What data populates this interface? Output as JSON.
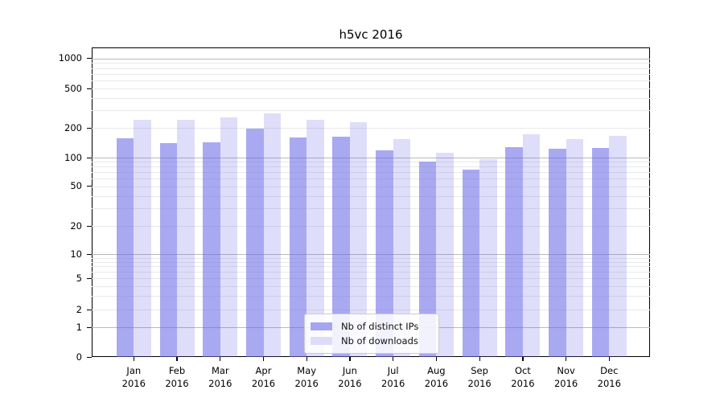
{
  "title": "h5vc 2016",
  "chart_data": {
    "type": "bar",
    "title": "h5vc 2016",
    "x_labels": [
      [
        "Jan",
        "2016"
      ],
      [
        "Feb",
        "2016"
      ],
      [
        "Mar",
        "2016"
      ],
      [
        "Apr",
        "2016"
      ],
      [
        "May",
        "2016"
      ],
      [
        "Jun",
        "2016"
      ],
      [
        "Jul",
        "2016"
      ],
      [
        "Aug",
        "2016"
      ],
      [
        "Sep",
        "2016"
      ],
      [
        "Oct",
        "2016"
      ],
      [
        "Nov",
        "2016"
      ],
      [
        "Dec",
        "2016"
      ]
    ],
    "series": [
      {
        "name": "Nb of distinct IPs",
        "color": "#a6a6ef",
        "fill": "rgba(104,104,232,0.57)",
        "values": [
          158,
          139,
          144,
          197,
          161,
          163,
          118,
          91,
          74,
          127,
          123,
          126
        ]
      },
      {
        "name": "Nb of downloads",
        "color": "#dcdcf9",
        "fill": "rgba(104,104,232,0.22)",
        "values": [
          241,
          241,
          255,
          280,
          240,
          229,
          153,
          113,
          96,
          173,
          153,
          166
        ]
      }
    ],
    "y_ticks": [
      0,
      1,
      2,
      5,
      10,
      20,
      50,
      100,
      200,
      500,
      1000
    ],
    "y_scale": "symlog",
    "ylim": [
      0,
      1200
    ],
    "grid": true,
    "legend_position": "lower-center"
  }
}
